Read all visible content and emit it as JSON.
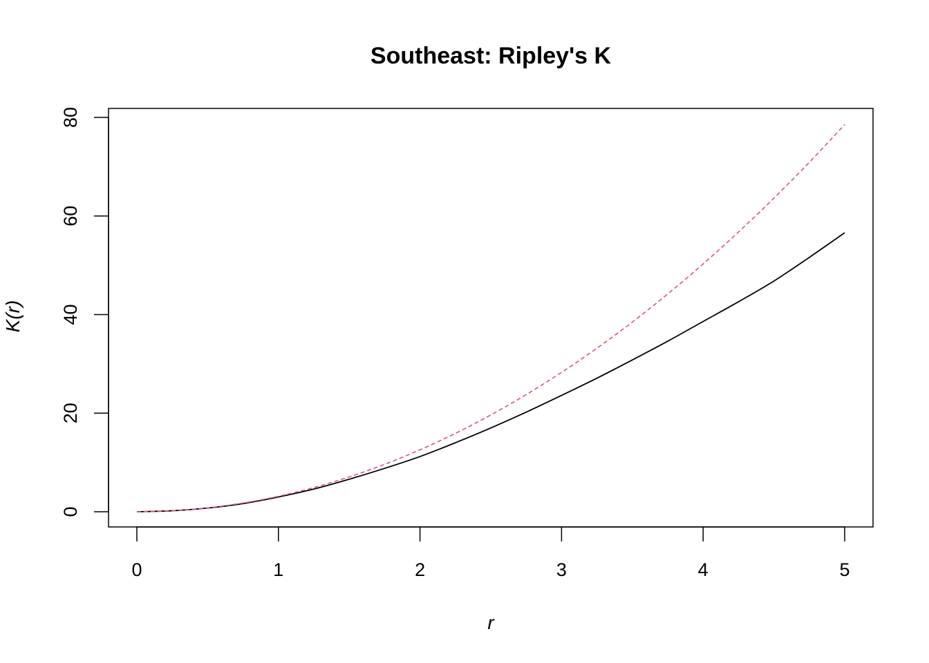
{
  "chart_data": {
    "type": "line",
    "title": "Southeast: Ripley's K",
    "xlabel": "r",
    "ylabel": "K(r)",
    "xlim": [
      0,
      5
    ],
    "ylim": [
      0,
      80
    ],
    "x_ticks": [
      0,
      1,
      2,
      3,
      4,
      5
    ],
    "y_ticks": [
      0,
      20,
      40,
      60,
      80
    ],
    "x_tick_labels": [
      "0",
      "1",
      "2",
      "3",
      "4",
      "5"
    ],
    "y_tick_labels": [
      "0",
      "20",
      "40",
      "60",
      "80"
    ],
    "grid": false,
    "legend": "none",
    "series": [
      {
        "line_style": "solid",
        "color": "#000000",
        "x": [
          0,
          0.25,
          0.5,
          0.75,
          1,
          1.25,
          1.5,
          1.75,
          2,
          2.25,
          2.5,
          2.75,
          3,
          3.25,
          3.5,
          3.75,
          4,
          4.25,
          4.5,
          4.75,
          5
        ],
        "y": [
          0,
          0.2,
          0.75,
          1.65,
          3.0,
          4.6,
          6.6,
          8.8,
          11.2,
          14.0,
          17.0,
          20.2,
          23.6,
          27.1,
          30.8,
          34.6,
          38.6,
          42.6,
          46.8,
          51.6,
          56.6
        ]
      },
      {
        "line_style": "dashed",
        "color": "#DF536B",
        "x": [
          0,
          0.25,
          0.5,
          0.75,
          1,
          1.25,
          1.5,
          1.75,
          2,
          2.25,
          2.5,
          2.75,
          3,
          3.25,
          3.5,
          3.75,
          4,
          4.25,
          4.5,
          4.75,
          5
        ],
        "y": [
          0,
          0.2,
          0.79,
          1.77,
          3.14,
          4.91,
          7.07,
          9.62,
          12.57,
          15.9,
          19.63,
          23.76,
          28.27,
          33.18,
          38.48,
          44.18,
          50.27,
          56.75,
          63.62,
          70.88,
          78.54
        ]
      }
    ]
  }
}
